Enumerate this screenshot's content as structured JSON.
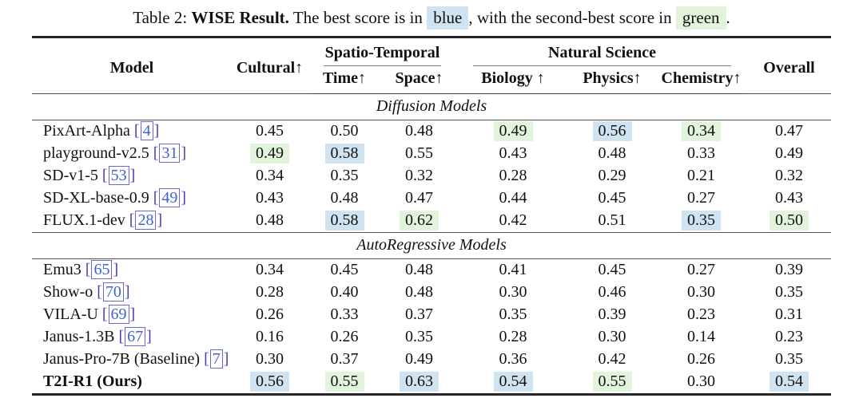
{
  "caption": {
    "prefix": "Table 2:",
    "title_bold": "WISE Result.",
    "text_before_blue": "The best score is in",
    "blue_word": "blue",
    "text_between": ", with the second-best score in",
    "green_word": "green",
    "period": "."
  },
  "colors": {
    "best_highlight": "#cfe3f0",
    "second_highlight": "#e3f4dd",
    "citation_bracket": "#4a3fb3",
    "citation_number": "#3f62d2",
    "citation_box": "#6e64d6"
  },
  "header": {
    "model": "Model",
    "cultural": "Cultural↑",
    "spatio_temporal": "Spatio-Temporal",
    "natural_science": "Natural Science",
    "overall": "Overall",
    "sub": [
      "Time↑",
      "Space↑",
      "Biology ↑",
      "Physics↑",
      "Chemistry↑"
    ]
  },
  "sections": [
    {
      "title": "Diffusion Models",
      "rows": [
        {
          "model": "PixArt-Alpha",
          "cite": "[4]",
          "bold": false,
          "values": [
            {
              "v": "0.45"
            },
            {
              "v": "0.50"
            },
            {
              "v": "0.48"
            },
            {
              "v": "0.49",
              "hl": "green"
            },
            {
              "v": "0.56",
              "hl": "blue"
            },
            {
              "v": "0.34",
              "hl": "green"
            },
            {
              "v": "0.47"
            }
          ]
        },
        {
          "model": "playground-v2.5",
          "cite": "[31]",
          "bold": false,
          "values": [
            {
              "v": "0.49",
              "hl": "green"
            },
            {
              "v": "0.58",
              "hl": "blue"
            },
            {
              "v": "0.55"
            },
            {
              "v": "0.43"
            },
            {
              "v": "0.48"
            },
            {
              "v": "0.33"
            },
            {
              "v": "0.49"
            }
          ]
        },
        {
          "model": "SD-v1-5",
          "cite": "[53]",
          "bold": false,
          "values": [
            {
              "v": "0.34"
            },
            {
              "v": "0.35"
            },
            {
              "v": "0.32"
            },
            {
              "v": "0.28"
            },
            {
              "v": "0.29"
            },
            {
              "v": "0.21"
            },
            {
              "v": "0.32"
            }
          ]
        },
        {
          "model": "SD-XL-base-0.9",
          "cite": "[49]",
          "bold": false,
          "values": [
            {
              "v": "0.43"
            },
            {
              "v": "0.48"
            },
            {
              "v": "0.47"
            },
            {
              "v": "0.44"
            },
            {
              "v": "0.45"
            },
            {
              "v": "0.27"
            },
            {
              "v": "0.43"
            }
          ]
        },
        {
          "model": "FLUX.1-dev",
          "cite": "[28]",
          "bold": false,
          "values": [
            {
              "v": "0.48"
            },
            {
              "v": "0.58",
              "hl": "blue"
            },
            {
              "v": "0.62",
              "hl": "green"
            },
            {
              "v": "0.42"
            },
            {
              "v": "0.51"
            },
            {
              "v": "0.35",
              "hl": "blue"
            },
            {
              "v": "0.50",
              "hl": "green"
            }
          ]
        }
      ]
    },
    {
      "title": "AutoRegressive Models",
      "rows": [
        {
          "model": "Emu3",
          "cite": "[65]",
          "bold": false,
          "values": [
            {
              "v": "0.34"
            },
            {
              "v": "0.45"
            },
            {
              "v": "0.48"
            },
            {
              "v": "0.41"
            },
            {
              "v": "0.45"
            },
            {
              "v": "0.27"
            },
            {
              "v": "0.39"
            }
          ]
        },
        {
          "model": "Show-o",
          "cite": "[70]",
          "bold": false,
          "values": [
            {
              "v": "0.28"
            },
            {
              "v": "0.40"
            },
            {
              "v": "0.48"
            },
            {
              "v": "0.30"
            },
            {
              "v": "0.46"
            },
            {
              "v": "0.30"
            },
            {
              "v": "0.35"
            }
          ]
        },
        {
          "model": "VILA-U",
          "cite": "[69]",
          "bold": false,
          "values": [
            {
              "v": "0.26"
            },
            {
              "v": "0.33"
            },
            {
              "v": "0.37"
            },
            {
              "v": "0.35"
            },
            {
              "v": "0.39"
            },
            {
              "v": "0.23"
            },
            {
              "v": "0.31"
            }
          ]
        },
        {
          "model": "Janus-1.3B",
          "cite": "[67]",
          "bold": false,
          "values": [
            {
              "v": "0.16"
            },
            {
              "v": "0.26"
            },
            {
              "v": "0.35"
            },
            {
              "v": "0.28"
            },
            {
              "v": "0.30"
            },
            {
              "v": "0.14"
            },
            {
              "v": "0.23"
            }
          ]
        },
        {
          "model": "Janus-Pro-7B (Baseline)",
          "cite": "[7]",
          "bold": false,
          "values": [
            {
              "v": "0.30"
            },
            {
              "v": "0.37"
            },
            {
              "v": "0.49"
            },
            {
              "v": "0.36"
            },
            {
              "v": "0.42"
            },
            {
              "v": "0.26"
            },
            {
              "v": "0.35"
            }
          ]
        },
        {
          "model": "T2I-R1 (Ours)",
          "cite": "",
          "bold": true,
          "values": [
            {
              "v": "0.56",
              "hl": "blue"
            },
            {
              "v": "0.55",
              "hl": "green"
            },
            {
              "v": "0.63",
              "hl": "blue"
            },
            {
              "v": "0.54",
              "hl": "blue"
            },
            {
              "v": "0.55",
              "hl": "green"
            },
            {
              "v": "0.30"
            },
            {
              "v": "0.54",
              "hl": "blue"
            }
          ]
        }
      ]
    }
  ]
}
